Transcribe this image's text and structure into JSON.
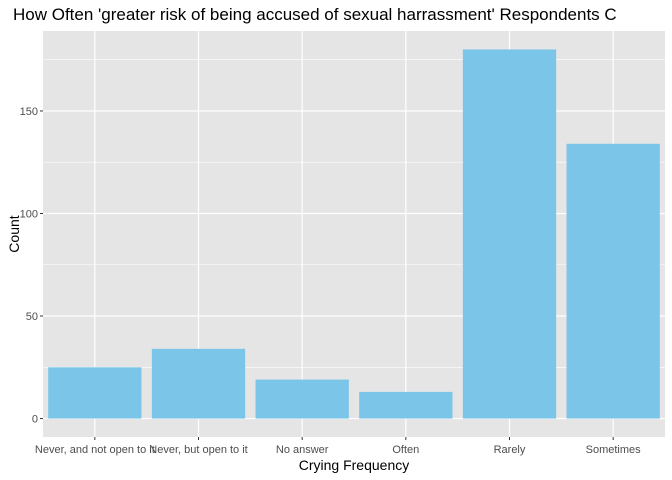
{
  "chart_data": {
    "type": "bar",
    "title": "How Often 'greater risk of being accused of sexual harrassment' Respondents C",
    "xlabel": "Crying Frequency",
    "ylabel": "Count",
    "categories": [
      "Never, and not open to it",
      "Never, but open to it",
      "No answer",
      "Often",
      "Rarely",
      "Sometimes"
    ],
    "values": [
      25,
      34,
      19,
      13,
      180,
      134
    ],
    "ylim": [
      -9,
      189
    ],
    "yticks": [
      0,
      50,
      100,
      150
    ],
    "grid": true,
    "bar_color": "#7AC5E8",
    "panel_color": "#E5E5E5",
    "grid_color": "#FFFFFF"
  }
}
